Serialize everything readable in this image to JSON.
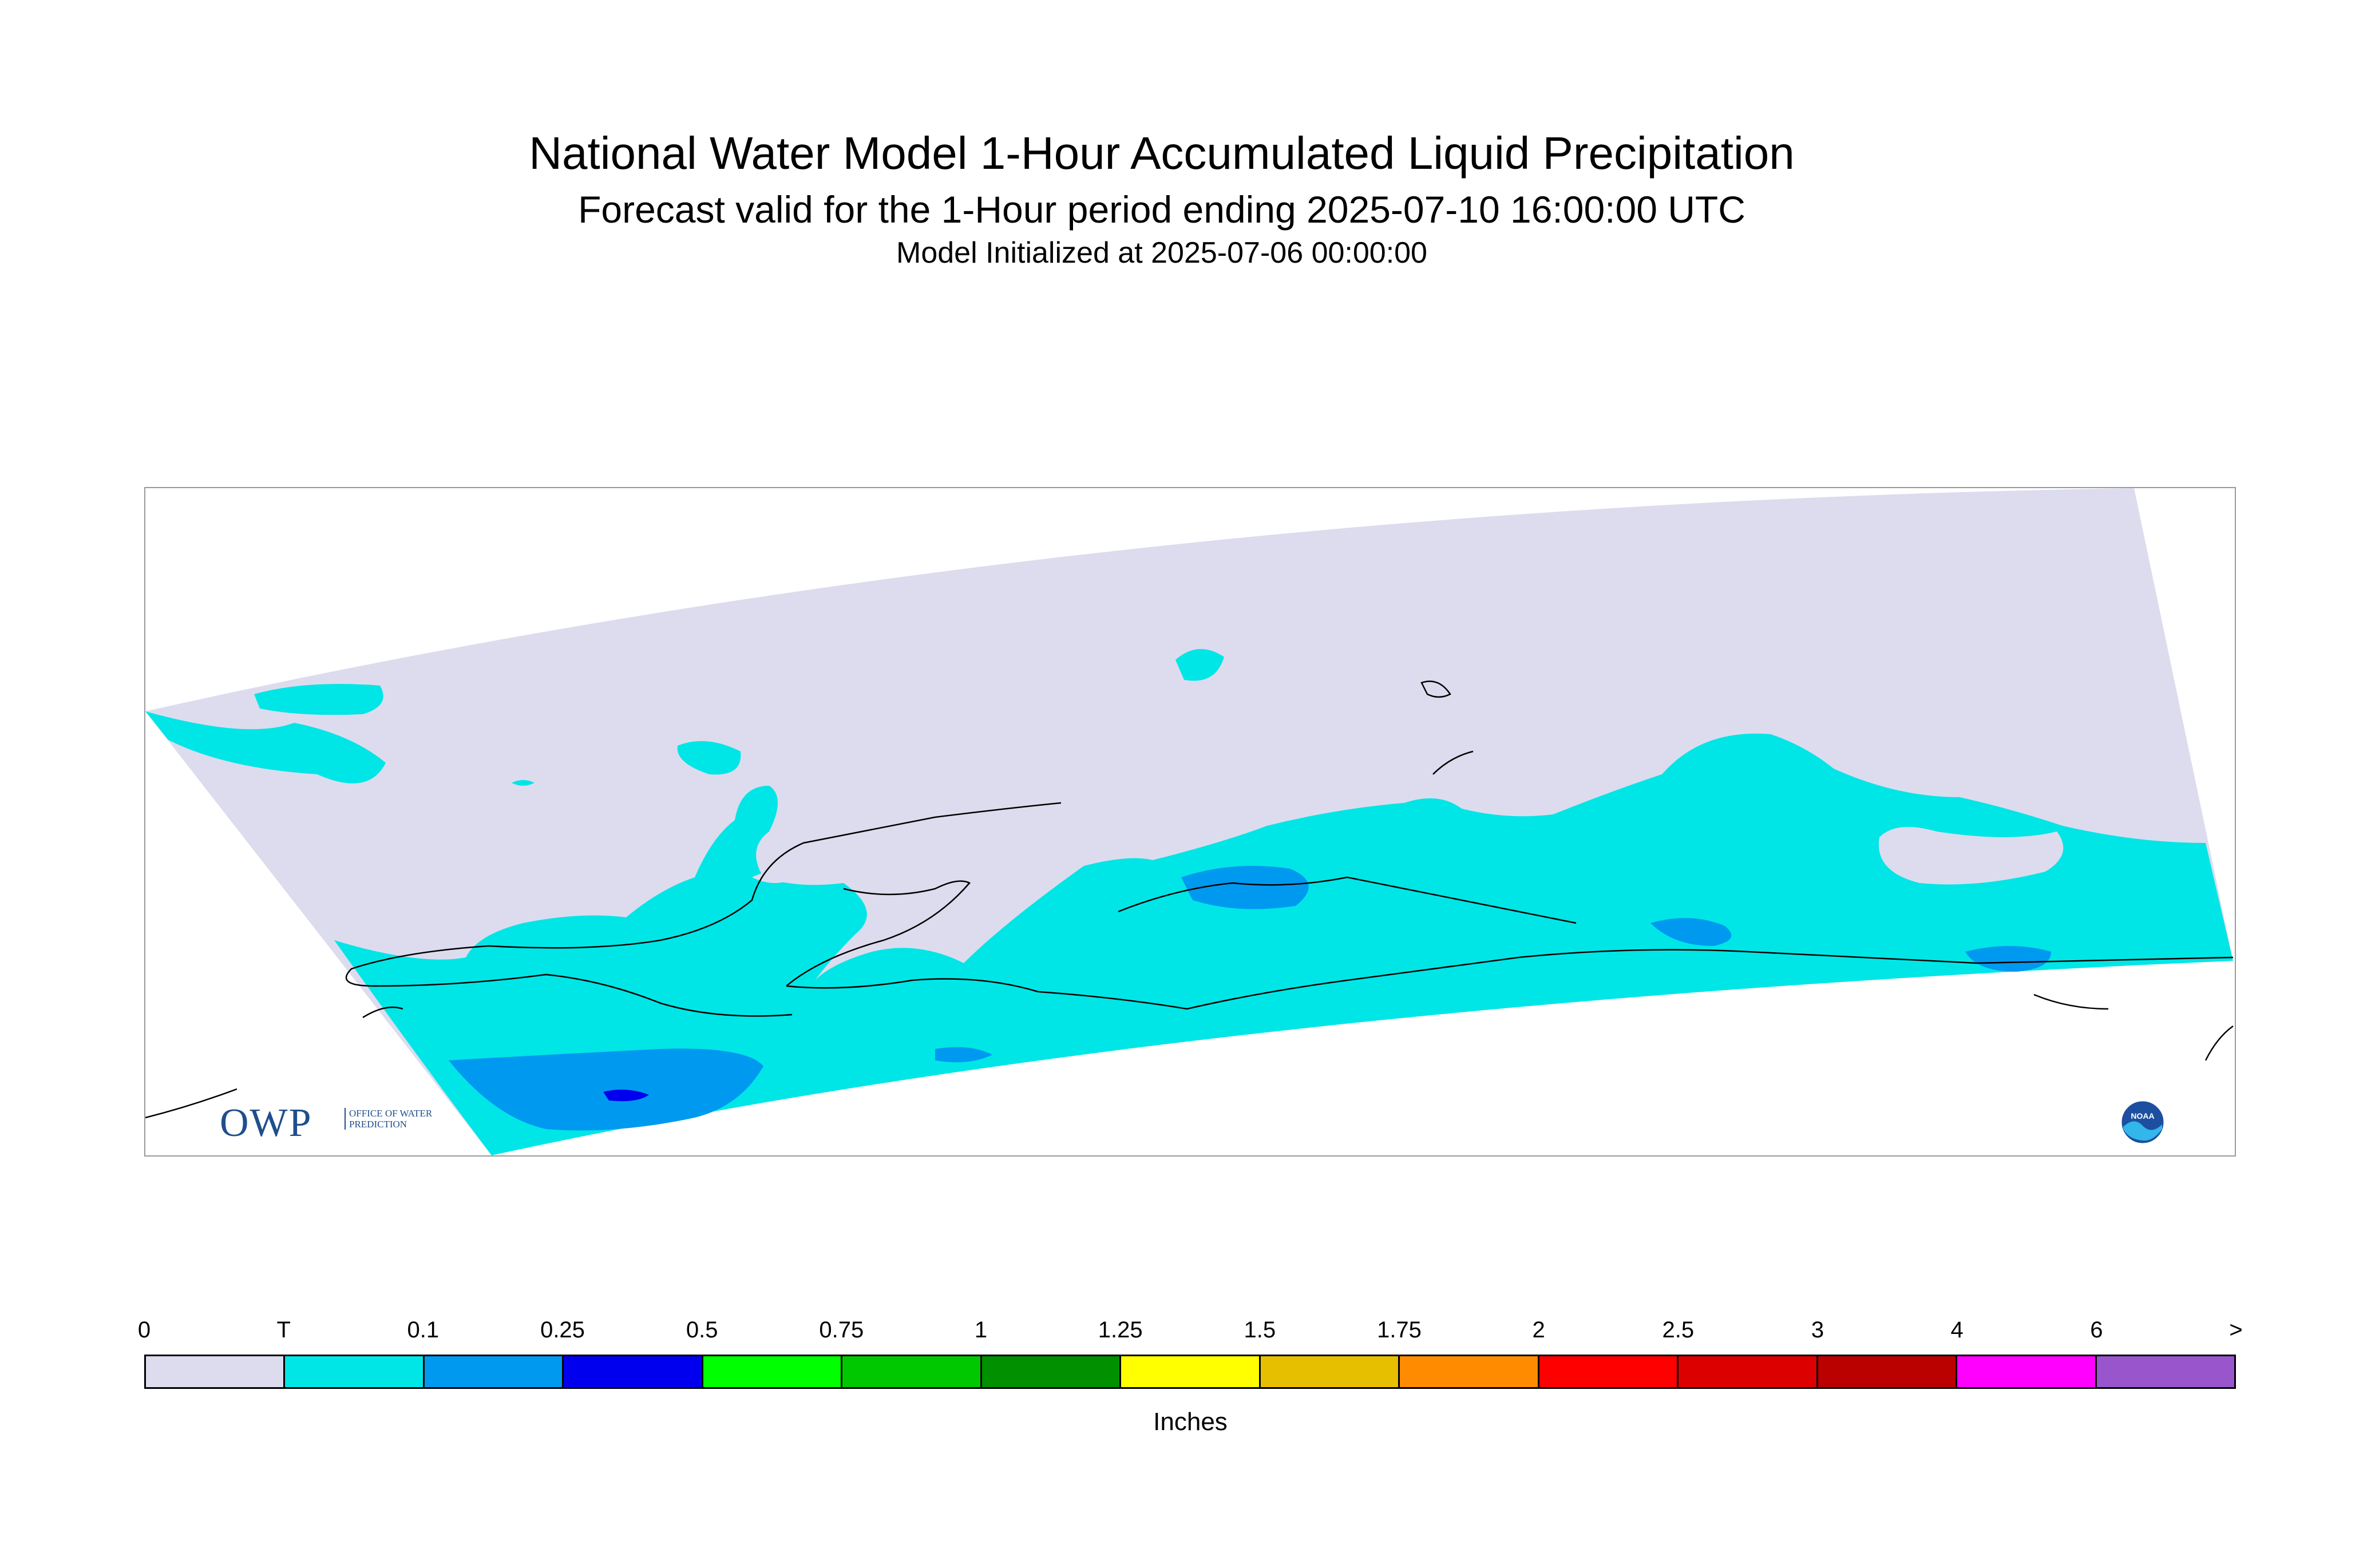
{
  "title": "National Water Model 1-Hour Accumulated Liquid Precipitation",
  "subtitle": "Forecast valid for the 1-Hour period ending 2025-07-10 16:00:00 UTC",
  "init_line": "Model Initialized at 2025-07-06 00:00:00",
  "logos": {
    "owp_mark": "OWP",
    "owp_text": "OFFICE OF WATER PREDICTION",
    "noaa_text": "NOAA"
  },
  "colors": {
    "zero": "#dcdcee",
    "trace": "#00e6e6",
    "p01": "#0099f0",
    "p025": "#0000ee",
    "coast": "#000000"
  },
  "legend": {
    "labels": [
      "0",
      "T",
      "0.1",
      "0.25",
      "0.5",
      "0.75",
      "1",
      "1.25",
      "1.5",
      "1.75",
      "2",
      "2.5",
      "3",
      "4",
      "6",
      ">"
    ],
    "colors": [
      "#dcdcee",
      "#00e6e6",
      "#0099f0",
      "#0000ee",
      "#00ff00",
      "#00c800",
      "#009000",
      "#ffff00",
      "#e6c000",
      "#ff8c00",
      "#ff0000",
      "#dd0000",
      "#bb0000",
      "#ff00ff",
      "#9955cc"
    ],
    "units": "Inches"
  }
}
